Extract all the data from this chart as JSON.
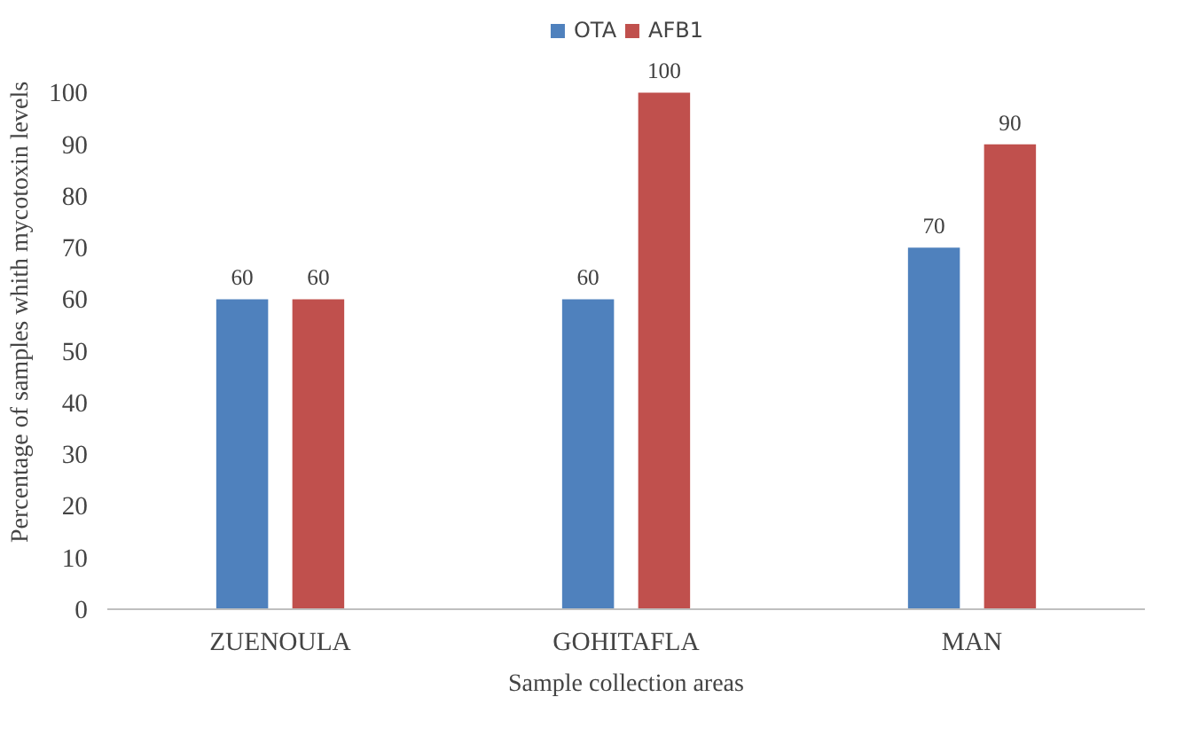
{
  "chart_data": {
    "type": "bar",
    "xlabel": "Sample collection areas",
    "ylabel": "Percentage of samples whith mycotoxin levels",
    "categories": [
      "ZUENOULA",
      "GOHITAFLA",
      "MAN"
    ],
    "series": [
      {
        "name": "OTA",
        "color": "#4f81bd",
        "values": [
          60,
          60,
          70
        ]
      },
      {
        "name": "AFB1",
        "color": "#c0504d",
        "values": [
          60,
          100,
          90
        ]
      }
    ],
    "ylim": [
      0,
      115
    ],
    "yticks": [
      0,
      10,
      20,
      30,
      40,
      50,
      60,
      70,
      80,
      90,
      100
    ],
    "grid": false,
    "legend": "top",
    "data_labels": true
  }
}
